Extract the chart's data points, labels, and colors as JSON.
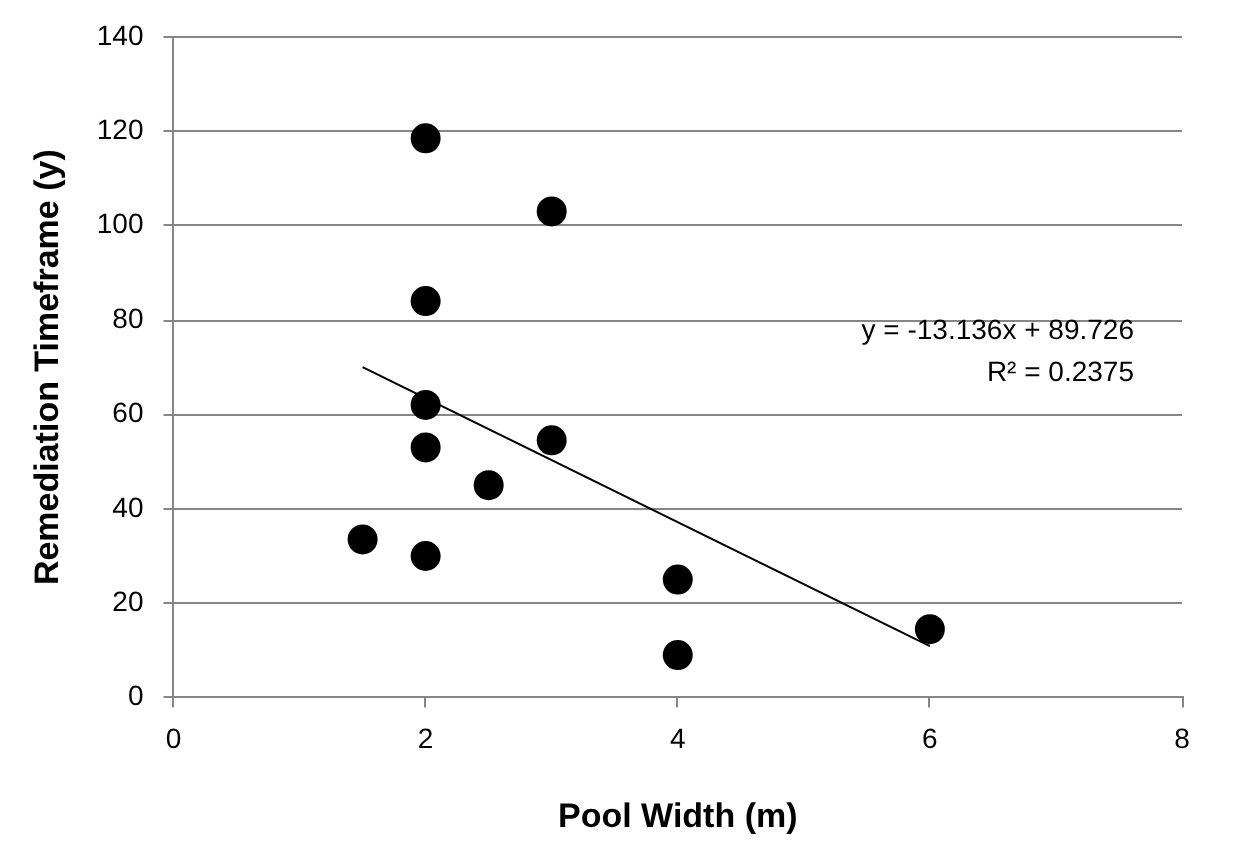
{
  "chart_data": {
    "type": "scatter",
    "xlabel": "Pool Width (m)",
    "ylabel": "Remediation Timeframe (y)",
    "xlim": [
      0,
      8
    ],
    "xticks": [
      0,
      2,
      4,
      6,
      8
    ],
    "ylim": [
      0,
      140
    ],
    "yticks": [
      0,
      20,
      40,
      60,
      80,
      100,
      120,
      140
    ],
    "grid": "y",
    "legend": false,
    "marker": "circle",
    "series": [
      {
        "color": "#000000",
        "x": [
          2,
          3,
          2,
          2,
          2,
          3,
          2.5,
          1.5,
          2,
          4,
          4,
          6
        ],
        "values": [
          118.5,
          103,
          84,
          62,
          53,
          54.5,
          45,
          33.5,
          30,
          25,
          9,
          14.5
        ]
      },
      {
        "type": "line",
        "color": "#000000",
        "marker": "none",
        "x": [
          1.5,
          6
        ],
        "values": [
          70.0,
          10.9
        ]
      }
    ],
    "annotations": [
      "y = -13.136x + 89.726",
      "R² = 0.2375"
    ]
  }
}
